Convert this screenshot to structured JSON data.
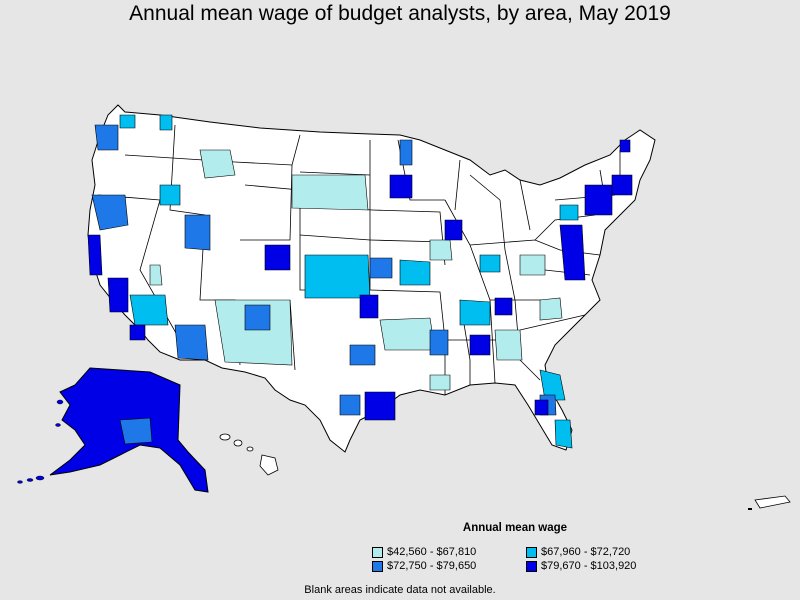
{
  "title": "Annual mean wage of budget analysts, by area, May 2019",
  "legend": {
    "title": "Annual mean wage",
    "items": [
      {
        "label": "$42,560 - $67,810",
        "color": "#b3ecec"
      },
      {
        "label": "$67,960 - $72,720",
        "color": "#00bff0"
      },
      {
        "label": "$72,750 - $79,650",
        "color": "#1e78e8"
      },
      {
        "label": "$79,670 - $103,920",
        "color": "#0000e6"
      }
    ]
  },
  "note": "Blank areas indicate data not available.",
  "colors": {
    "background": "#e6e6e6",
    "no_data": "#ffffff",
    "border": "#000000"
  }
}
